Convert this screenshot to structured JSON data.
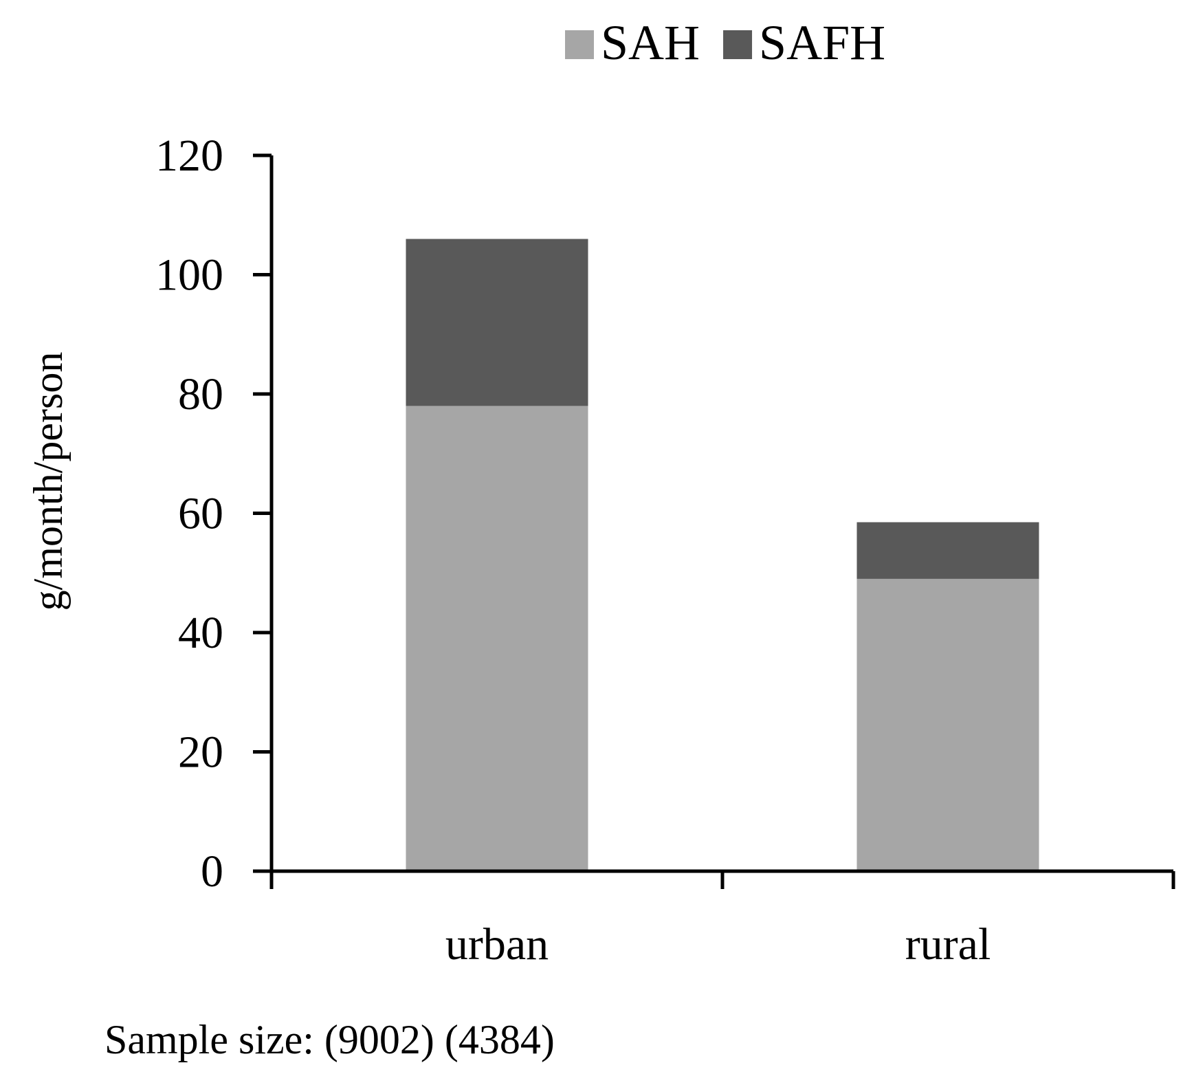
{
  "chart_data": {
    "type": "bar",
    "stacked": true,
    "categories": [
      "urban",
      "rural"
    ],
    "series": [
      {
        "name": "SAH",
        "values": [
          78,
          49
        ],
        "color": "#a6a6a6"
      },
      {
        "name": "SAFH",
        "values": [
          28,
          9.5
        ],
        "color": "#595959"
      }
    ],
    "title": "",
    "xlabel": "",
    "ylabel": "g/month/person",
    "ylim": [
      0,
      120
    ],
    "yticks": [
      0,
      20,
      40,
      60,
      80,
      100,
      120
    ],
    "grid": false,
    "legend_position": "top",
    "footnote": "Sample size: (9002) (4384)",
    "axis_color": "#000000"
  }
}
